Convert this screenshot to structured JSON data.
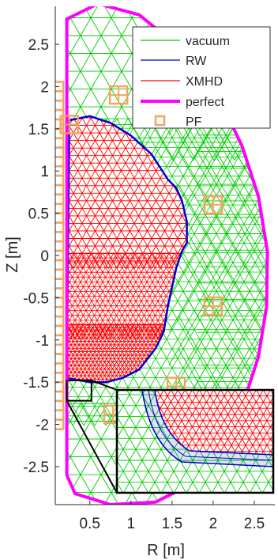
{
  "chart_data": {
    "type": "mesh",
    "xlabel": "R [m]",
    "ylabel": "Z [m]",
    "xlim": [
      0.08,
      2.75
    ],
    "ylim": [
      -2.95,
      2.95
    ],
    "xticks": [
      0.5,
      1,
      1.5,
      2,
      2.5
    ],
    "xtick_labels": [
      "0.5",
      "1",
      "1.5",
      "2",
      "2.5"
    ],
    "yticks": [
      2.5,
      2,
      1.5,
      1,
      0.5,
      0,
      -0.5,
      -1,
      -1.5,
      -2,
      -2.5
    ],
    "ytick_labels": [
      "2.5",
      "2",
      "1.5",
      "1",
      "0.5",
      "0",
      "-0.5",
      "-1",
      "-1.5",
      "-2",
      "-2.5"
    ],
    "legend": {
      "placement": "top-right",
      "entries": [
        {
          "label": "vacuum",
          "color": "#00cc00",
          "marker": "line"
        },
        {
          "label": "RW",
          "color": "#0000cc",
          "marker": "line"
        },
        {
          "label": "XMHD",
          "color": "#ff0000",
          "marker": "line"
        },
        {
          "label": "perfect",
          "color": "#ff00ff",
          "marker": "thick-line"
        },
        {
          "label": "PF",
          "color": "#f4a460",
          "marker": "square"
        }
      ]
    },
    "pf_coils": [
      {
        "r": 0.85,
        "z": 1.9,
        "size": "large"
      },
      {
        "r": 2.0,
        "z": 0.6,
        "size": "large"
      },
      {
        "r": 2.0,
        "z": -0.6,
        "size": "large"
      },
      {
        "r": 1.55,
        "z": -1.55,
        "size": "large"
      },
      {
        "r": 0.78,
        "z": -1.88,
        "size": "large"
      },
      {
        "r": 0.25,
        "z": 1.55,
        "size": "large"
      },
      {
        "r": 0.85,
        "z": -2.4,
        "size": "small"
      }
    ],
    "central_solenoid": {
      "r": 0.12,
      "z_min": -2.0,
      "z_max": 2.0
    },
    "plasma_boundary_RW": [
      [
        0.22,
        -1.4
      ],
      [
        0.25,
        1.6
      ],
      [
        0.5,
        1.65
      ],
      [
        0.75,
        1.57
      ],
      [
        1.0,
        1.42
      ],
      [
        1.25,
        1.2
      ],
      [
        1.45,
        0.9
      ],
      [
        1.55,
        0.8
      ],
      [
        1.62,
        0.65
      ],
      [
        1.68,
        0.4
      ],
      [
        1.68,
        0.15
      ],
      [
        1.62,
        0.05
      ],
      [
        1.55,
        -0.15
      ],
      [
        1.45,
        -0.6
      ],
      [
        1.4,
        -0.9
      ],
      [
        1.3,
        -1.1
      ],
      [
        1.1,
        -1.35
      ],
      [
        0.9,
        -1.45
      ],
      [
        0.7,
        -1.5
      ],
      [
        0.5,
        -1.5
      ],
      [
        0.22,
        -1.45
      ]
    ],
    "vacuum_boundary_perfect": [
      [
        0.22,
        2.8
      ],
      [
        0.6,
        2.98
      ],
      [
        1.1,
        2.85
      ],
      [
        1.6,
        2.45
      ],
      [
        2.05,
        1.9
      ],
      [
        2.35,
        1.3
      ],
      [
        2.55,
        0.7
      ],
      [
        2.66,
        0.05
      ],
      [
        2.65,
        -0.6
      ],
      [
        2.55,
        -1.2
      ],
      [
        2.35,
        -1.8
      ],
      [
        2.1,
        -2.3
      ],
      [
        1.75,
        -2.7
      ],
      [
        1.3,
        -2.92
      ],
      [
        0.75,
        -2.95
      ],
      [
        0.32,
        -2.82
      ],
      [
        0.22,
        -2.6
      ]
    ],
    "zoom_region": {
      "r": [
        0.22,
        0.52
      ],
      "z": [
        -1.72,
        -1.48
      ]
    },
    "inset": {
      "type": "mesh-zoom",
      "content": "XMHD mesh inside RW band, surrounded by vacuum mesh"
    }
  }
}
